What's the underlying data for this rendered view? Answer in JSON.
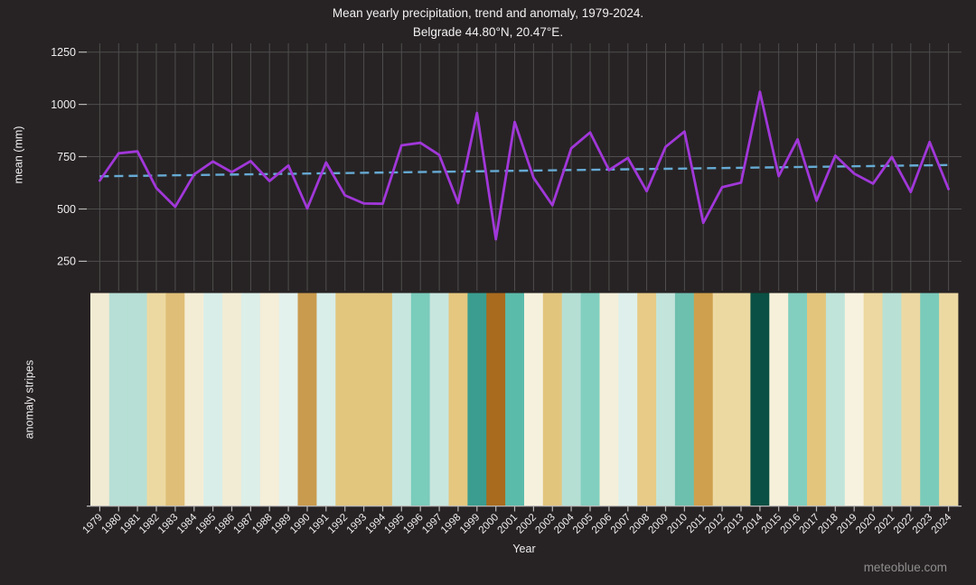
{
  "header": {
    "title": "Mean yearly precipitation, trend and anomaly, 1979-2024.",
    "subtitle": "Belgrade 44.80°N, 20.47°E."
  },
  "watermark": "meteoblue.com",
  "colors": {
    "background": "#272324",
    "grid": "#4f4d4d",
    "axis": "#b9b7b7",
    "text": "#efedee",
    "line": "#a137d9",
    "trend": "#66aad4",
    "watermark": "#8f8d8d"
  },
  "chart_data": {
    "type": "line",
    "title": "Mean yearly precipitation, trend and anomaly, 1979-2024.",
    "subtitle": "Belgrade 44.80°N, 20.47°E.",
    "xlabel": "Year",
    "ylabel": "mean (mm)",
    "yticks": [
      250,
      500,
      750,
      1000,
      1250
    ],
    "ylim": [
      110,
      1290
    ],
    "grid": true,
    "years": [
      1979,
      1980,
      1981,
      1982,
      1983,
      1984,
      1985,
      1986,
      1987,
      1988,
      1989,
      1990,
      1991,
      1992,
      1993,
      1994,
      1995,
      1996,
      1997,
      1998,
      1999,
      2000,
      2001,
      2002,
      2003,
      2004,
      2005,
      2006,
      2007,
      2008,
      2009,
      2010,
      2011,
      2012,
      2013,
      2014,
      2015,
      2016,
      2017,
      2018,
      2019,
      2020,
      2021,
      2022,
      2023,
      2024
    ],
    "series": [
      {
        "name": "mean yearly precipitation (mm)",
        "style": "solid",
        "color": "#a137d9",
        "values": [
          636,
          766,
          775,
          600,
          510,
          665,
          727,
          676,
          729,
          633,
          708,
          502,
          722,
          565,
          526,
          525,
          804,
          816,
          758,
          528,
          959,
          355,
          916,
          649,
          518,
          790,
          866,
          686,
          744,
          585,
          797,
          870,
          434,
          604,
          626,
          1060,
          657,
          833,
          539,
          755,
          669,
          621,
          749,
          581,
          820,
          595
        ]
      },
      {
        "name": "trend",
        "style": "dashed",
        "color": "#66aad4",
        "start_value": 656,
        "end_value": 710
      }
    ],
    "anomaly_stripes": {
      "label": "anomaly stripes",
      "colors_by_year": [
        "#f2ebd3",
        "#b7dfd5",
        "#b7dfd5",
        "#ecd9a1",
        "#dfbe77",
        "#f4edd6",
        "#d9eee9",
        "#f2ecd5",
        "#dcefe9",
        "#f5eed8",
        "#e4f2ed",
        "#c99b4e",
        "#d9eee9",
        "#e2c67e",
        "#e2c67e",
        "#e2c67e",
        "#c7e6de",
        "#7accbb",
        "#c7e6de",
        "#e5c77f",
        "#3a9d8f",
        "#a96b1e",
        "#5bbbaa",
        "#f6f1dd",
        "#e2c57d",
        "#b6dfd4",
        "#82cfbf",
        "#f4efda",
        "#dff0ec",
        "#e8cb86",
        "#c3e4da",
        "#6ec0ae",
        "#cfa04d",
        "#ecd9a2",
        "#ecd9a2",
        "#0b5044",
        "#f6f0da",
        "#82cfbf",
        "#e3c57c",
        "#c0e4da",
        "#f7f2df",
        "#ecd8a0",
        "#b8e0d5",
        "#ecd8a3",
        "#7bcbba",
        "#ecd9a2"
      ]
    }
  }
}
